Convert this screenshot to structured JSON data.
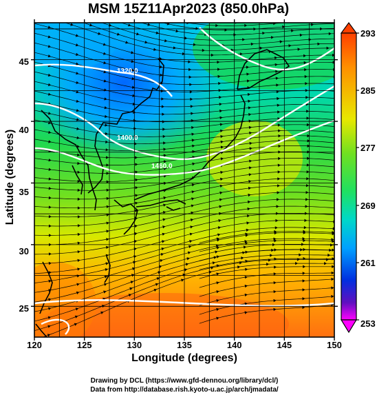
{
  "title": "MSM 15Z11Apr2023 (850.0hPa)",
  "xaxis": {
    "label": "Longitude (degrees)",
    "ticks": [
      "120",
      "125",
      "130",
      "135",
      "140",
      "145",
      "150"
    ],
    "range": [
      120,
      150
    ]
  },
  "yaxis": {
    "label": "Latitude  (degrees)",
    "ticks": [
      "25",
      "30",
      "35",
      "40",
      "45"
    ],
    "range": [
      22.5,
      48
    ]
  },
  "colorbar": {
    "ticks": [
      "293",
      "285",
      "277",
      "269",
      "261",
      "253"
    ],
    "range": [
      253,
      293
    ],
    "colors": [
      "#ff00ff",
      "#2020c0",
      "#0040ff",
      "#00c8ff",
      "#00e080",
      "#20e020",
      "#a0f000",
      "#f0f000",
      "#ffa000",
      "#ff5000"
    ]
  },
  "contour_labels": [
    "1320.0",
    "1400.0",
    "1460.0"
  ],
  "credits": {
    "line1": "Drawing by DCL (https://www.gfd-dennou.org/library/dcl/)",
    "line2": "Data from http://database.rish.kyoto-u.ac.jp/arch/jmadata/"
  }
}
